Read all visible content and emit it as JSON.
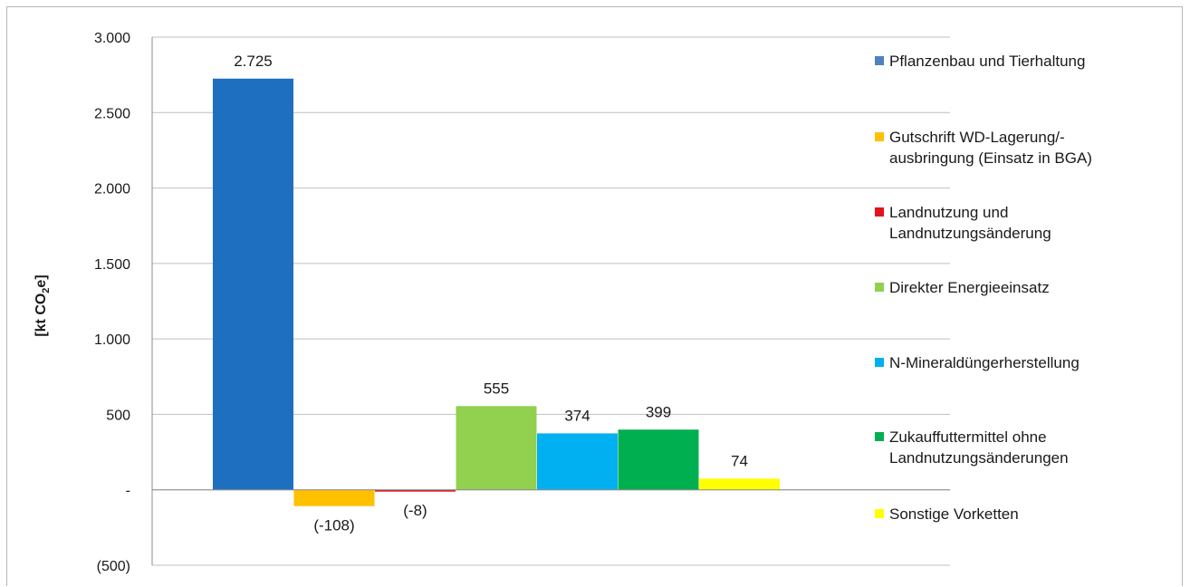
{
  "chart_data": {
    "type": "bar",
    "ylabel": "[kt CO₂e]",
    "ylim": [
      -500,
      3000
    ],
    "yticks": [
      {
        "value": 3000,
        "label": "3.000"
      },
      {
        "value": 2500,
        "label": "2.500"
      },
      {
        "value": 2000,
        "label": "2.000"
      },
      {
        "value": 1500,
        "label": "1.500"
      },
      {
        "value": 1000,
        "label": "1.000"
      },
      {
        "value": 500,
        "label": "500"
      },
      {
        "value": 0,
        "label": "-"
      },
      {
        "value": -500,
        "label": "(500)"
      }
    ],
    "grid": true,
    "legend_position": "right",
    "series": [
      {
        "name": "Pflanzenbau und Tierhaltung",
        "legend_lines": [
          "Pflanzenbau und Tierhaltung"
        ],
        "value": 2725,
        "label": "2.725",
        "color": "#1f6fc0",
        "legend_color": "#4f81bd"
      },
      {
        "name": "Gutschrift WD-Lagerung/-ausbringung (Einsatz in BGA)",
        "legend_lines": [
          "Gutschrift WD-Lagerung/-",
          "ausbringung (Einsatz in BGA)"
        ],
        "value": -108,
        "label": "(-108)",
        "color": "#ffc000",
        "legend_color": "#ffc000"
      },
      {
        "name": "Landnutzung und Landnutzungsänderung",
        "legend_lines": [
          "Landnutzung und",
          "Landnutzungsänderung"
        ],
        "value": -8,
        "label": "(-8)",
        "color": "#e2141b",
        "legend_color": "#e2141b"
      },
      {
        "name": "Direkter Energieeinsatz",
        "legend_lines": [
          "Direkter Energieeinsatz"
        ],
        "value": 555,
        "label": "555",
        "color": "#92d050",
        "legend_color": "#92d050"
      },
      {
        "name": "N-Mineraldüngerherstellung",
        "legend_lines": [
          "N-Mineraldüngerherstellung"
        ],
        "value": 374,
        "label": "374",
        "color": "#00b0f0",
        "legend_color": "#00b0f0"
      },
      {
        "name": "Zukauffuttermittel ohne Landnutzungsänderungen",
        "legend_lines": [
          "Zukauffuttermittel ohne",
          "Landnutzungsänderungen"
        ],
        "value": 399,
        "label": "399",
        "color": "#00b050",
        "legend_color": "#00b050"
      },
      {
        "name": "Sonstige Vorketten",
        "legend_lines": [
          "Sonstige Vorketten"
        ],
        "value": 74,
        "label": "74",
        "color": "#ffff00",
        "legend_color": "#ffff00"
      }
    ]
  }
}
